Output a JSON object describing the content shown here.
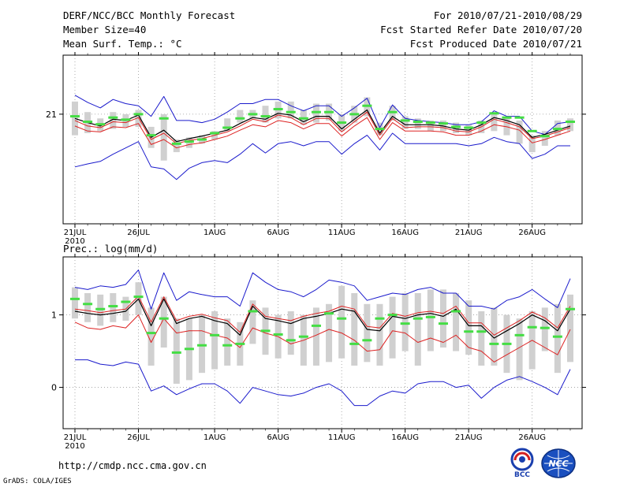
{
  "header": {
    "title": "DERF/NCC/BCC Monthly Forecast",
    "member_size": "Member Size=40",
    "variable_temp": "Mean Surf. Temp.: °C",
    "period": "For 2010/07/21-2010/08/29",
    "start_date": "Fcst Started Refer Date 2010/07/20",
    "produced_date": "Fcst Produced Date 2010/07/21"
  },
  "footer": {
    "url": "http://cmdp.ncc.cma.gov.cn",
    "credit": "GrADS: COLA/IGES",
    "logo_bcc_text": "BCC",
    "logo_ncc_text": "NCC"
  },
  "colors": {
    "box": "#d0d0d0",
    "median": "#44dd44",
    "mean": "#000000",
    "band": "#dd2222",
    "extreme": "#1a1acc",
    "grid": "#999999"
  },
  "chart_data": [
    {
      "type": "box-line",
      "title": "Mean Surf. Temp.: °C",
      "year_label": "2010",
      "x_ticks": [
        {
          "day": 1,
          "label": "21JUL"
        },
        {
          "day": 6,
          "label": "26JUL"
        },
        {
          "day": 12,
          "label": "1AUG"
        },
        {
          "day": 17,
          "label": "6AUG"
        },
        {
          "day": 22,
          "label": "11AUG"
        },
        {
          "day": 27,
          "label": "16AUG"
        },
        {
          "day": 32,
          "label": "21AUG"
        },
        {
          "day": 37,
          "label": "26AUG"
        }
      ],
      "y_ticks": [
        {
          "value": 21,
          "label": "21"
        }
      ],
      "ylim": [
        18.4,
        22.4
      ],
      "series": {
        "box_low": [
          20.5,
          20.55,
          20.6,
          20.65,
          20.7,
          20.7,
          20.2,
          19.9,
          20.1,
          20.2,
          20.3,
          20.4,
          20.6,
          20.8,
          20.9,
          20.8,
          20.9,
          20.9,
          20.75,
          20.8,
          20.85,
          20.6,
          20.8,
          20.95,
          20.5,
          20.85,
          20.65,
          20.65,
          20.6,
          20.6,
          20.55,
          20.5,
          20.55,
          20.6,
          20.5,
          20.3,
          20.1,
          20.25,
          20.5,
          20.6
        ],
        "box_high": [
          21.3,
          21.05,
          20.9,
          21.05,
          21.0,
          21.1,
          20.7,
          21.0,
          20.4,
          20.45,
          20.5,
          20.6,
          20.9,
          21.1,
          21.1,
          21.2,
          21.3,
          21.3,
          21.1,
          21.25,
          21.25,
          21.0,
          21.2,
          21.4,
          20.8,
          21.2,
          20.95,
          20.9,
          20.85,
          20.85,
          20.8,
          20.75,
          20.85,
          21.05,
          20.9,
          20.85,
          20.5,
          20.6,
          20.85,
          20.9
        ],
        "median": [
          20.95,
          20.82,
          20.76,
          20.92,
          20.87,
          21.0,
          20.5,
          20.9,
          20.3,
          20.35,
          20.4,
          20.55,
          20.68,
          20.9,
          21.0,
          20.95,
          21.12,
          21.05,
          20.9,
          21.05,
          21.05,
          20.8,
          21.0,
          21.2,
          20.65,
          21.05,
          20.85,
          20.82,
          20.8,
          20.78,
          20.7,
          20.68,
          20.8,
          21.02,
          20.92,
          20.92,
          20.6,
          20.48,
          20.65,
          20.82
        ],
        "mean": [
          20.9,
          20.8,
          20.72,
          20.88,
          20.85,
          20.98,
          20.45,
          20.62,
          20.35,
          20.42,
          20.48,
          20.55,
          20.62,
          20.78,
          20.92,
          20.88,
          21.02,
          20.98,
          20.82,
          20.95,
          20.95,
          20.65,
          20.88,
          21.1,
          20.55,
          20.95,
          20.75,
          20.75,
          20.75,
          20.72,
          20.65,
          20.62,
          20.75,
          20.92,
          20.85,
          20.75,
          20.45,
          20.52,
          20.62,
          20.72
        ],
        "band_high": [
          20.85,
          20.72,
          20.68,
          20.82,
          20.8,
          20.92,
          20.4,
          20.55,
          20.3,
          20.38,
          20.42,
          20.5,
          20.58,
          20.72,
          20.88,
          20.82,
          20.98,
          20.92,
          20.75,
          20.9,
          20.9,
          20.58,
          20.82,
          21.05,
          20.5,
          20.9,
          20.68,
          20.7,
          20.7,
          20.68,
          20.6,
          20.58,
          20.7,
          20.88,
          20.8,
          20.7,
          20.42,
          20.48,
          20.58,
          20.68
        ],
        "band_low": [
          20.72,
          20.6,
          20.58,
          20.7,
          20.68,
          20.78,
          20.28,
          20.4,
          20.2,
          20.28,
          20.32,
          20.4,
          20.48,
          20.62,
          20.75,
          20.7,
          20.85,
          20.8,
          20.65,
          20.78,
          20.78,
          20.48,
          20.72,
          20.92,
          20.4,
          20.8,
          20.6,
          20.6,
          20.6,
          20.58,
          20.5,
          20.5,
          20.6,
          20.75,
          20.7,
          20.62,
          20.32,
          20.4,
          20.5,
          20.6
        ],
        "max": [
          21.45,
          21.28,
          21.15,
          21.35,
          21.25,
          21.2,
          20.95,
          21.42,
          20.85,
          20.85,
          20.8,
          20.88,
          21.05,
          21.25,
          21.25,
          21.35,
          21.35,
          21.2,
          21.08,
          21.2,
          21.2,
          20.95,
          21.15,
          21.38,
          20.68,
          21.22,
          20.9,
          20.85,
          20.82,
          20.8,
          20.75,
          20.75,
          20.82,
          21.08,
          20.95,
          20.95,
          20.6,
          20.52,
          20.78,
          20.82
        ],
        "min": [
          19.75,
          19.82,
          19.88,
          20.05,
          20.2,
          20.35,
          19.75,
          19.7,
          19.45,
          19.72,
          19.85,
          19.9,
          19.85,
          20.05,
          20.3,
          20.08,
          20.3,
          20.35,
          20.25,
          20.35,
          20.35,
          20.05,
          20.3,
          20.5,
          20.15,
          20.55,
          20.3,
          20.3,
          20.3,
          20.3,
          20.3,
          20.25,
          20.3,
          20.45,
          20.35,
          20.3,
          19.95,
          20.05,
          20.25,
          20.25
        ]
      }
    },
    {
      "type": "box-line",
      "title": "Prec.: log(mm/d)",
      "year_label": "2010",
      "x_ticks": [
        {
          "day": 1,
          "label": "21JUL"
        },
        {
          "day": 6,
          "label": "26JUL"
        },
        {
          "day": 12,
          "label": "1AUG"
        },
        {
          "day": 17,
          "label": "6AUG"
        },
        {
          "day": 22,
          "label": "11AUG"
        },
        {
          "day": 27,
          "label": "16AUG"
        },
        {
          "day": 32,
          "label": "21AUG"
        },
        {
          "day": 37,
          "label": "26AUG"
        }
      ],
      "y_ticks": [
        {
          "value": 0,
          "label": "0"
        },
        {
          "value": 1,
          "label": "1"
        }
      ],
      "ylim": [
        -0.57,
        1.8
      ],
      "series": {
        "box_low": [
          0.95,
          0.9,
          0.85,
          0.9,
          0.92,
          1.0,
          0.3,
          0.55,
          0.05,
          0.1,
          0.2,
          0.25,
          0.3,
          0.3,
          0.6,
          0.45,
          0.4,
          0.45,
          0.3,
          0.3,
          0.35,
          0.4,
          0.3,
          0.35,
          0.3,
          0.4,
          0.5,
          0.3,
          0.5,
          0.55,
          0.5,
          0.45,
          0.3,
          0.3,
          0.2,
          0.1,
          0.25,
          0.5,
          0.2,
          0.35
        ],
        "box_high": [
          1.38,
          1.3,
          1.28,
          1.3,
          1.25,
          1.45,
          1.1,
          1.25,
          0.95,
          0.95,
          1.0,
          1.05,
          0.95,
          0.9,
          1.2,
          1.1,
          1.0,
          1.05,
          1.0,
          1.1,
          1.15,
          1.4,
          1.3,
          1.15,
          1.15,
          1.25,
          1.3,
          1.3,
          1.35,
          1.35,
          1.3,
          1.2,
          1.05,
          1.1,
          1.0,
          0.95,
          1.05,
          1.1,
          1.15,
          1.28
        ],
        "median": [
          1.22,
          1.15,
          1.08,
          1.12,
          1.18,
          1.25,
          0.75,
          0.95,
          0.48,
          0.53,
          0.58,
          0.72,
          0.58,
          0.6,
          1.05,
          0.78,
          0.73,
          0.65,
          0.7,
          0.85,
          1.02,
          0.95,
          0.6,
          0.65,
          0.95,
          1.0,
          0.88,
          0.95,
          0.97,
          0.88,
          1.05,
          0.77,
          0.77,
          0.6,
          0.6,
          0.72,
          0.83,
          0.82,
          0.7,
          1.08
        ],
        "mean": [
          1.05,
          1.02,
          1.0,
          1.02,
          1.05,
          1.22,
          0.85,
          1.22,
          0.88,
          0.95,
          0.98,
          0.92,
          0.88,
          0.72,
          1.12,
          0.95,
          0.92,
          0.88,
          0.95,
          0.98,
          1.02,
          1.08,
          1.05,
          0.8,
          0.78,
          0.98,
          0.95,
          1.0,
          1.02,
          0.98,
          1.08,
          0.85,
          0.85,
          0.68,
          0.78,
          0.88,
          1.0,
          0.92,
          0.78,
          1.08
        ],
        "band_high": [
          1.08,
          1.06,
          1.03,
          1.06,
          1.08,
          1.26,
          0.9,
          1.25,
          0.92,
          0.98,
          1.01,
          0.96,
          0.92,
          0.76,
          1.15,
          0.98,
          0.95,
          0.92,
          0.98,
          1.02,
          1.05,
          1.12,
          1.08,
          0.84,
          0.82,
          1.02,
          0.98,
          1.03,
          1.05,
          1.02,
          1.12,
          0.89,
          0.89,
          0.72,
          0.82,
          0.92,
          1.04,
          0.96,
          0.82,
          1.12
        ],
        "band_low": [
          0.9,
          0.82,
          0.8,
          0.85,
          0.82,
          1.0,
          0.62,
          0.95,
          0.75,
          0.78,
          0.78,
          0.72,
          0.68,
          0.55,
          0.82,
          0.75,
          0.7,
          0.6,
          0.65,
          0.72,
          0.8,
          0.75,
          0.65,
          0.5,
          0.52,
          0.78,
          0.75,
          0.62,
          0.68,
          0.62,
          0.72,
          0.55,
          0.5,
          0.35,
          0.45,
          0.55,
          0.65,
          0.55,
          0.45,
          0.8
        ],
        "max": [
          1.38,
          1.35,
          1.4,
          1.38,
          1.42,
          1.62,
          1.08,
          1.58,
          1.2,
          1.32,
          1.28,
          1.25,
          1.25,
          1.12,
          1.58,
          1.45,
          1.35,
          1.32,
          1.25,
          1.35,
          1.48,
          1.45,
          1.4,
          1.2,
          1.25,
          1.3,
          1.28,
          1.35,
          1.38,
          1.3,
          1.3,
          1.12,
          1.12,
          1.08,
          1.2,
          1.25,
          1.35,
          1.22,
          1.1,
          1.5
        ],
        "min": [
          0.38,
          0.38,
          0.32,
          0.3,
          0.35,
          0.32,
          -0.05,
          0.02,
          -0.1,
          -0.02,
          0.05,
          0.05,
          -0.05,
          -0.22,
          0.0,
          -0.05,
          -0.1,
          -0.12,
          -0.08,
          0.0,
          0.05,
          -0.05,
          -0.25,
          -0.25,
          -0.12,
          -0.05,
          -0.08,
          0.05,
          0.08,
          0.08,
          0.0,
          0.03,
          -0.15,
          0.0,
          0.1,
          0.15,
          0.08,
          0.0,
          -0.1,
          0.25
        ]
      }
    }
  ]
}
